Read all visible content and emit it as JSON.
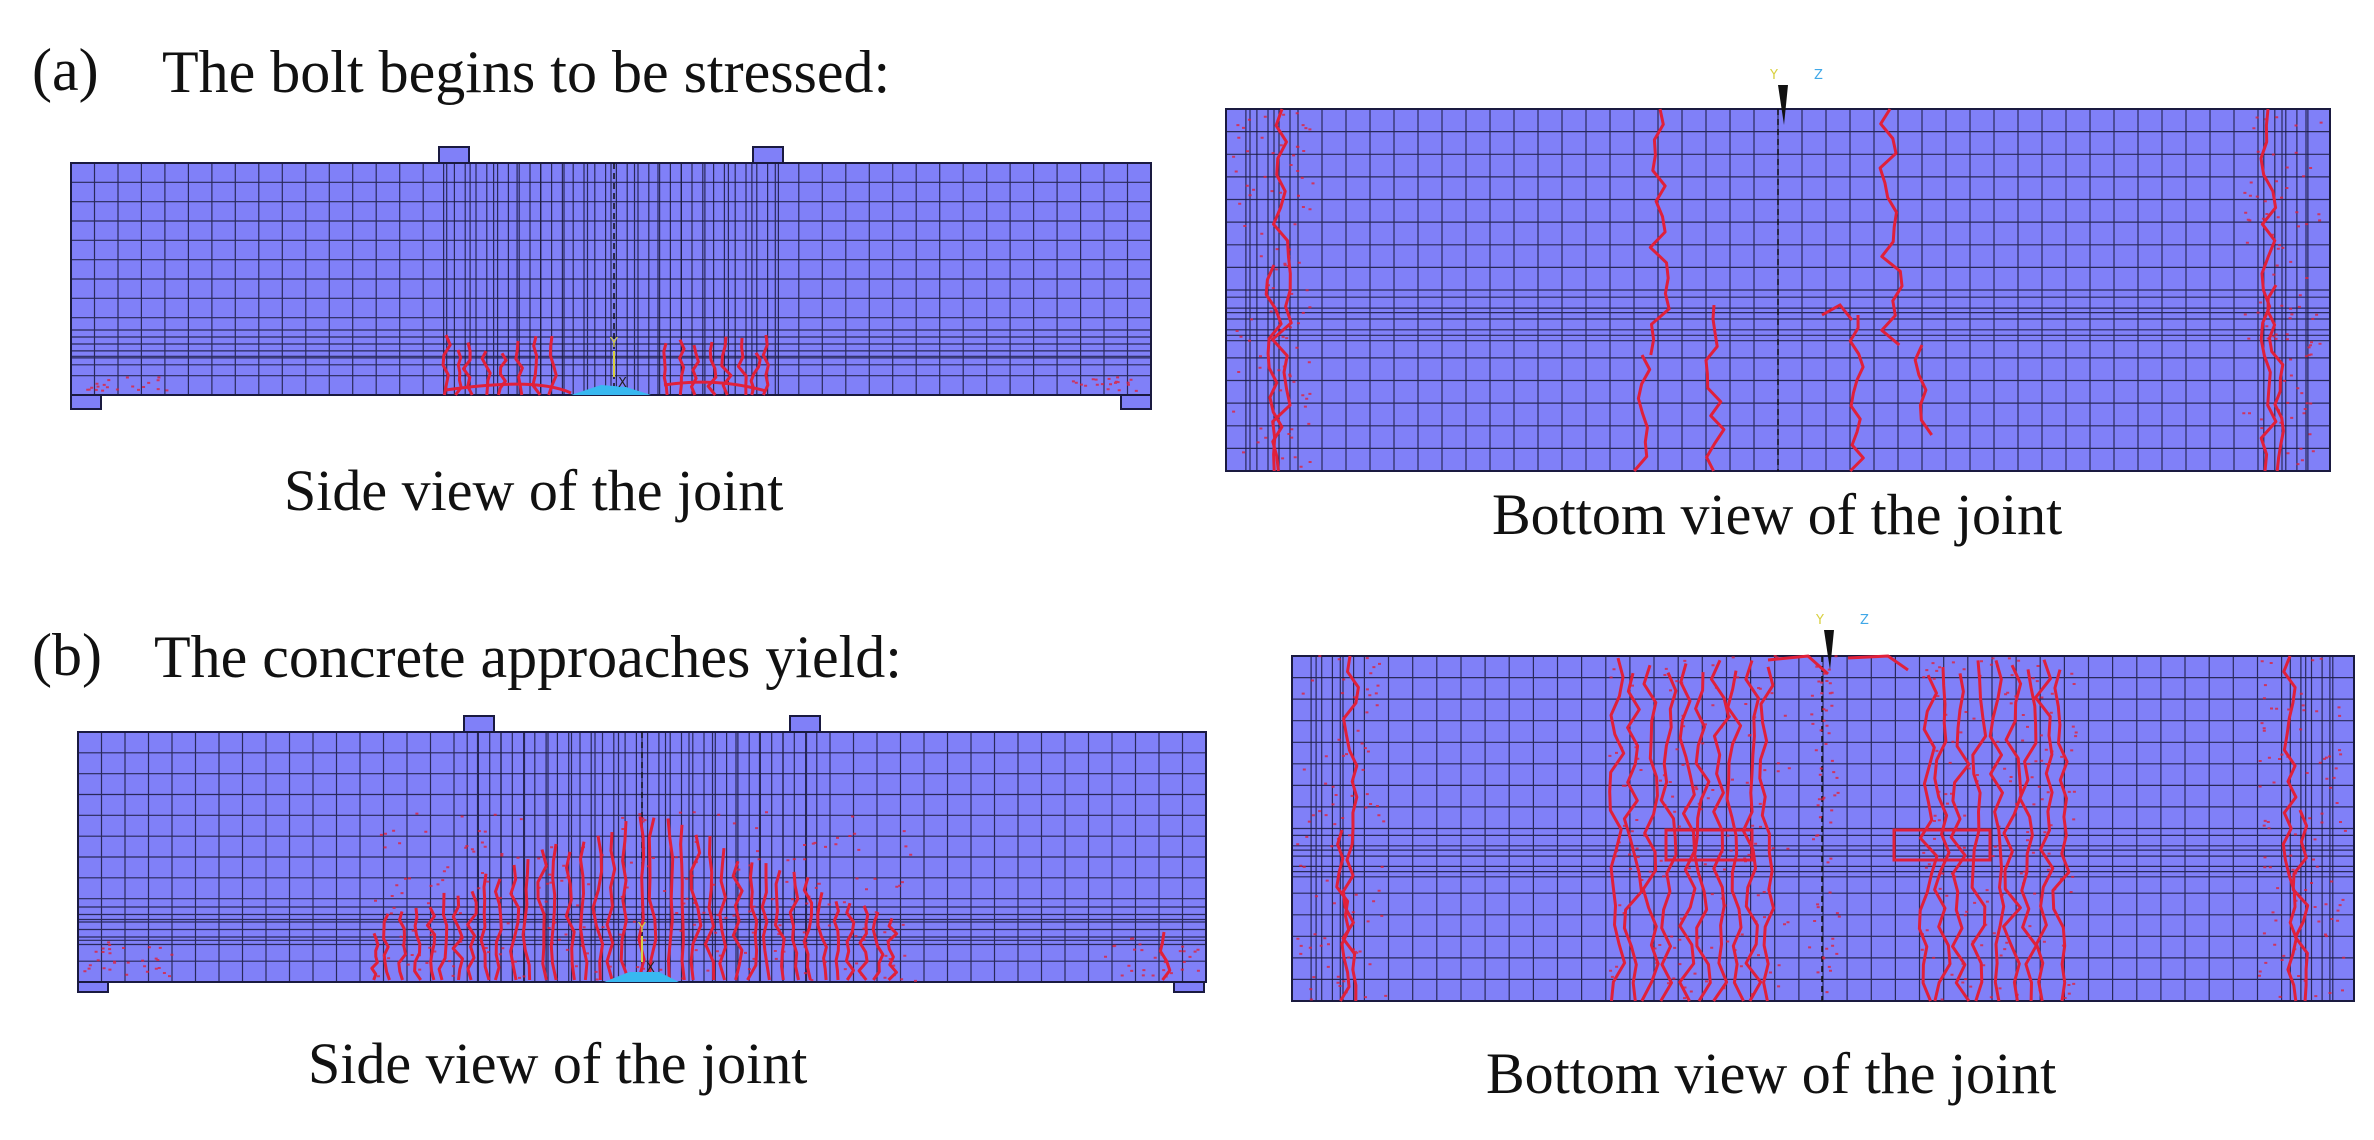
{
  "panels": {
    "a": {
      "label": "(a)",
      "heading": "The bolt begins to be stressed:",
      "side_caption": "Side view of the joint",
      "bottom_caption": "Bottom view of the joint"
    },
    "b": {
      "label": "(b)",
      "heading": "The concrete approaches yield:",
      "side_caption": "Side view of the joint",
      "bottom_caption": "Bottom view of the joint"
    }
  },
  "colors": {
    "mesh_fill": "#8080f8",
    "mesh_line": "#1a1a40",
    "crack": "#e0203a",
    "support": "#38b8f0"
  },
  "axis_triad": {
    "y_label": "Y",
    "z_label": "Z",
    "x_label": "X"
  }
}
